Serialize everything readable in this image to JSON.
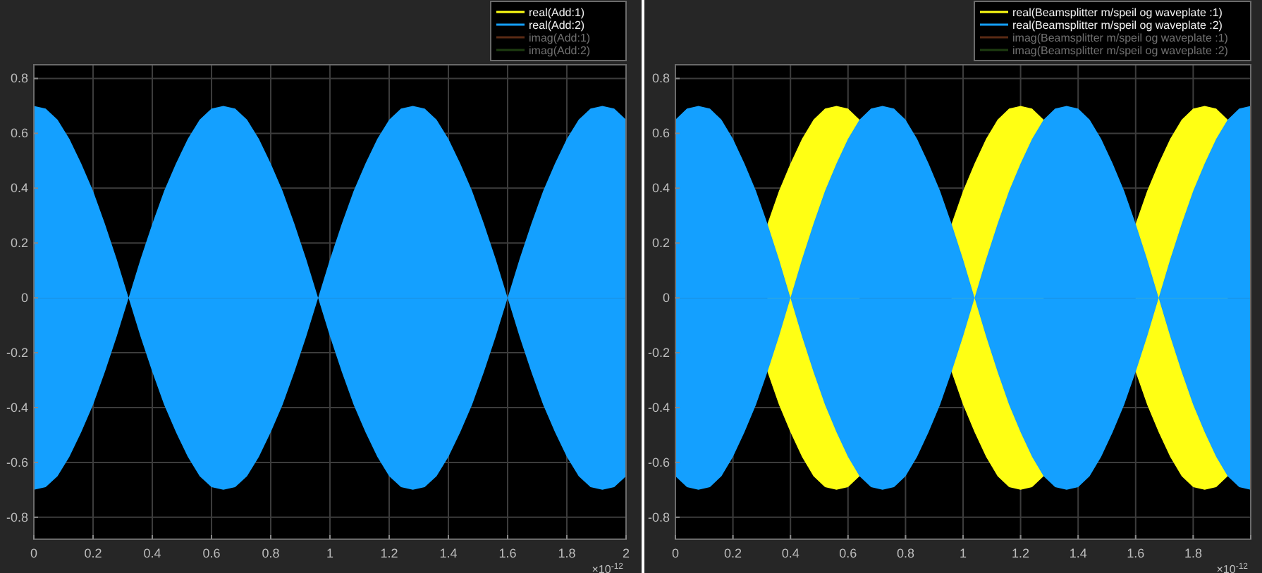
{
  "chart_data": [
    {
      "type": "area",
      "legend": "top right",
      "grid": true,
      "x": [
        0,
        0.04,
        0.08,
        0.12,
        0.16,
        0.2,
        0.24,
        0.28,
        0.32,
        0.36,
        0.4,
        0.44,
        0.48,
        0.52,
        0.56,
        0.6,
        0.64,
        0.68,
        0.72,
        0.76,
        0.8,
        0.84,
        0.88,
        0.92,
        0.96,
        1,
        1.04,
        1.08,
        1.12,
        1.16,
        1.2,
        1.24,
        1.28,
        1.32,
        1.36,
        1.4,
        1.44,
        1.48,
        1.52,
        1.56,
        1.6,
        1.64,
        1.68,
        1.72,
        1.76,
        1.8,
        1.84,
        1.88,
        1.92,
        1.96,
        2
      ],
      "xlim": [
        0,
        2
      ],
      "xticks": [
        0,
        0.2,
        0.4,
        0.6,
        0.8,
        1,
        1.2,
        1.4,
        1.6,
        1.8,
        2
      ],
      "ylim": [
        -0.88,
        0.85
      ],
      "yticks": [
        -0.8,
        -0.6,
        -0.4,
        -0.2,
        0,
        0.2,
        0.4,
        0.6,
        0.8
      ],
      "annotations": [
        "×10$^{-12}$"
      ],
      "series": [
        {
          "name": "real(Add:1)",
          "color": "#ffff14",
          "values": [
            null,
            null,
            null,
            null,
            null,
            null,
            null,
            null,
            null,
            null,
            null,
            null,
            null,
            null,
            null,
            null,
            null,
            null,
            null,
            null,
            null,
            null,
            null,
            null,
            null,
            null,
            null,
            null,
            null,
            null,
            null,
            null,
            null,
            null,
            null,
            null,
            null,
            null,
            null,
            null,
            null,
            null,
            null,
            null,
            null,
            null,
            null,
            null,
            null,
            null,
            null
          ]
        },
        {
          "name": "real(Add:2)",
          "color": "#14a0ff",
          "values": [
            0.7,
            0.69,
            0.65,
            0.58,
            0.49,
            0.39,
            0.27,
            0.14,
            0,
            0.14,
            0.27,
            0.39,
            0.49,
            0.58,
            0.65,
            0.69,
            0.7,
            0.69,
            0.65,
            0.58,
            0.49,
            0.39,
            0.27,
            0.14,
            0,
            0.14,
            0.27,
            0.39,
            0.49,
            0.58,
            0.65,
            0.69,
            0.7,
            0.69,
            0.65,
            0.58,
            0.49,
            0.39,
            0.27,
            0.14,
            0,
            0.14,
            0.27,
            0.39,
            0.49,
            0.58,
            0.65,
            0.69,
            0.7,
            0.69,
            0.65
          ]
        },
        {
          "color": "#14a0ff",
          "values": [
            -0.7,
            -0.69,
            -0.65,
            -0.58,
            -0.49,
            -0.39,
            -0.27,
            -0.14,
            0,
            -0.14,
            -0.27,
            -0.39,
            -0.49,
            -0.58,
            -0.65,
            -0.69,
            -0.7,
            -0.69,
            -0.65,
            -0.58,
            -0.49,
            -0.39,
            -0.27,
            -0.14,
            0,
            -0.14,
            -0.27,
            -0.39,
            -0.49,
            -0.58,
            -0.65,
            -0.69,
            -0.7,
            -0.69,
            -0.65,
            -0.58,
            -0.49,
            -0.39,
            -0.27,
            -0.14,
            0,
            -0.14,
            -0.27,
            -0.39,
            -0.49,
            -0.58,
            -0.65,
            -0.69,
            -0.7,
            -0.69,
            -0.65
          ]
        },
        {
          "name": "imag(Add:1)",
          "color": "#5a2a14",
          "values": [
            null,
            null,
            null,
            null,
            null,
            null,
            null,
            null,
            null,
            null,
            null,
            null,
            null,
            null,
            null,
            null,
            null,
            null,
            null,
            null,
            null,
            null,
            null,
            null,
            null,
            null,
            null,
            null,
            null,
            null,
            null,
            null,
            null,
            null,
            null,
            null,
            null,
            null,
            null,
            null,
            null,
            null,
            null,
            null,
            null,
            null,
            null,
            null,
            null,
            null,
            null
          ]
        },
        {
          "name": "imag(Add:2)",
          "color": "#1e3c10",
          "values": [
            null,
            null,
            null,
            null,
            null,
            null,
            null,
            null,
            null,
            null,
            null,
            null,
            null,
            null,
            null,
            null,
            null,
            null,
            null,
            null,
            null,
            null,
            null,
            null,
            null,
            null,
            null,
            null,
            null,
            null,
            null,
            null,
            null,
            null,
            null,
            null,
            null,
            null,
            null,
            null,
            null,
            null,
            null,
            null,
            null,
            null,
            null,
            null,
            null,
            null,
            null
          ]
        }
      ]
    },
    {
      "type": "area",
      "legend": "top right",
      "grid": true,
      "x": [
        0,
        0.04,
        0.08,
        0.12,
        0.16,
        0.2,
        0.24,
        0.28,
        0.32,
        0.36,
        0.4,
        0.44,
        0.48,
        0.52,
        0.56,
        0.6,
        0.64,
        0.68,
        0.72,
        0.76,
        0.8,
        0.84,
        0.88,
        0.92,
        0.96,
        1,
        1.04,
        1.08,
        1.12,
        1.16,
        1.2,
        1.24,
        1.28,
        1.32,
        1.36,
        1.4,
        1.44,
        1.48,
        1.52,
        1.56,
        1.6,
        1.64,
        1.68,
        1.72,
        1.76,
        1.8,
        1.84,
        1.88,
        1.92,
        1.96,
        2
      ],
      "xlim": [
        0,
        2
      ],
      "xticks": [
        0,
        0.2,
        0.4,
        0.6,
        0.8,
        1,
        1.2,
        1.4,
        1.6,
        1.8,
        {
          "value": 2,
          "label": null
        }
      ],
      "ylim": [
        -0.88,
        0.85
      ],
      "yticks": [
        -0.8,
        -0.6,
        -0.4,
        -0.2,
        0,
        0.2,
        0.4,
        0.6,
        0.8
      ],
      "annotations": [
        "×10$^{-12}$"
      ],
      "series": [
        {
          "name": "real(Beamsplitter m/speil og waveplate :1)",
          "color": "#ffff14",
          "values": [
            null,
            null,
            null,
            null,
            null,
            null,
            null,
            null,
            0.27,
            0.39,
            0.49,
            0.58,
            0.65,
            0.69,
            0.7,
            0.69,
            0.65,
            null,
            null,
            null,
            null,
            null,
            null,
            null,
            0.27,
            0.39,
            0.49,
            0.58,
            0.65,
            0.69,
            0.7,
            0.69,
            0.65,
            null,
            null,
            null,
            null,
            null,
            null,
            null,
            0.27,
            0.39,
            0.49,
            0.58,
            0.65,
            0.69,
            0.7,
            0.69,
            0.65,
            null,
            null
          ]
        },
        {
          "color": "#ffff14",
          "values": [
            null,
            null,
            null,
            null,
            null,
            null,
            null,
            null,
            -0.27,
            -0.39,
            -0.49,
            -0.58,
            -0.65,
            -0.69,
            -0.7,
            -0.69,
            -0.65,
            null,
            null,
            null,
            null,
            null,
            null,
            null,
            -0.27,
            -0.39,
            -0.49,
            -0.58,
            -0.65,
            -0.69,
            -0.7,
            -0.69,
            -0.65,
            null,
            null,
            null,
            null,
            null,
            null,
            null,
            -0.27,
            -0.39,
            -0.49,
            -0.58,
            -0.65,
            -0.69,
            -0.7,
            -0.69,
            -0.65,
            null,
            null
          ]
        },
        {
          "name": "real(Beamsplitter m/speil og waveplate :2)",
          "color": "#14a0ff",
          "values": [
            0.65,
            0.69,
            0.7,
            0.69,
            0.65,
            0.58,
            0.49,
            0.39,
            0.27,
            0.14,
            0,
            0.14,
            0.27,
            0.39,
            0.49,
            0.58,
            0.65,
            0.69,
            0.7,
            0.69,
            0.65,
            0.58,
            0.49,
            0.39,
            0.27,
            0.14,
            0,
            0.14,
            0.27,
            0.39,
            0.49,
            0.58,
            0.65,
            0.69,
            0.7,
            0.69,
            0.65,
            0.58,
            0.49,
            0.39,
            0.27,
            0.14,
            0,
            0.14,
            0.27,
            0.39,
            0.49,
            0.58,
            0.65,
            0.69,
            0.7
          ]
        },
        {
          "color": "#14a0ff",
          "values": [
            -0.65,
            -0.69,
            -0.7,
            -0.69,
            -0.65,
            -0.58,
            -0.49,
            -0.39,
            -0.27,
            -0.14,
            0,
            -0.14,
            -0.27,
            -0.39,
            -0.49,
            -0.58,
            -0.65,
            -0.69,
            -0.7,
            -0.69,
            -0.65,
            -0.58,
            -0.49,
            -0.39,
            -0.27,
            -0.14,
            0,
            -0.14,
            -0.27,
            -0.39,
            -0.49,
            -0.58,
            -0.65,
            -0.69,
            -0.7,
            -0.69,
            -0.65,
            -0.58,
            -0.49,
            -0.39,
            -0.27,
            -0.14,
            0,
            -0.14,
            -0.27,
            -0.39,
            -0.49,
            -0.58,
            -0.65,
            -0.69,
            -0.7
          ]
        },
        {
          "name": "imag(Beamsplitter m/speil og waveplate :1)",
          "color": "#5a2a14",
          "values": [
            null,
            null,
            null,
            null,
            null,
            null,
            null,
            null,
            null,
            null,
            null,
            null,
            null,
            null,
            null,
            null,
            null,
            null,
            null,
            null,
            null,
            null,
            null,
            null,
            null,
            null,
            null,
            null,
            null,
            null,
            null,
            null,
            null,
            null,
            null,
            null,
            null,
            null,
            null,
            null,
            null,
            null,
            null,
            null,
            null,
            null,
            null,
            null,
            null,
            null,
            null
          ]
        },
        {
          "name": "imag(Beamsplitter m/speil og waveplate :2)",
          "color": "#1e3c10",
          "values": [
            null,
            null,
            null,
            null,
            null,
            null,
            null,
            null,
            null,
            null,
            null,
            null,
            null,
            null,
            null,
            null,
            null,
            null,
            null,
            null,
            null,
            null,
            null,
            null,
            null,
            null,
            null,
            null,
            null,
            null,
            null,
            null,
            null,
            null,
            null,
            null,
            null,
            null,
            null,
            null,
            null,
            null,
            null,
            null,
            null,
            null,
            null,
            null,
            null,
            null,
            null
          ]
        }
      ]
    }
  ]
}
